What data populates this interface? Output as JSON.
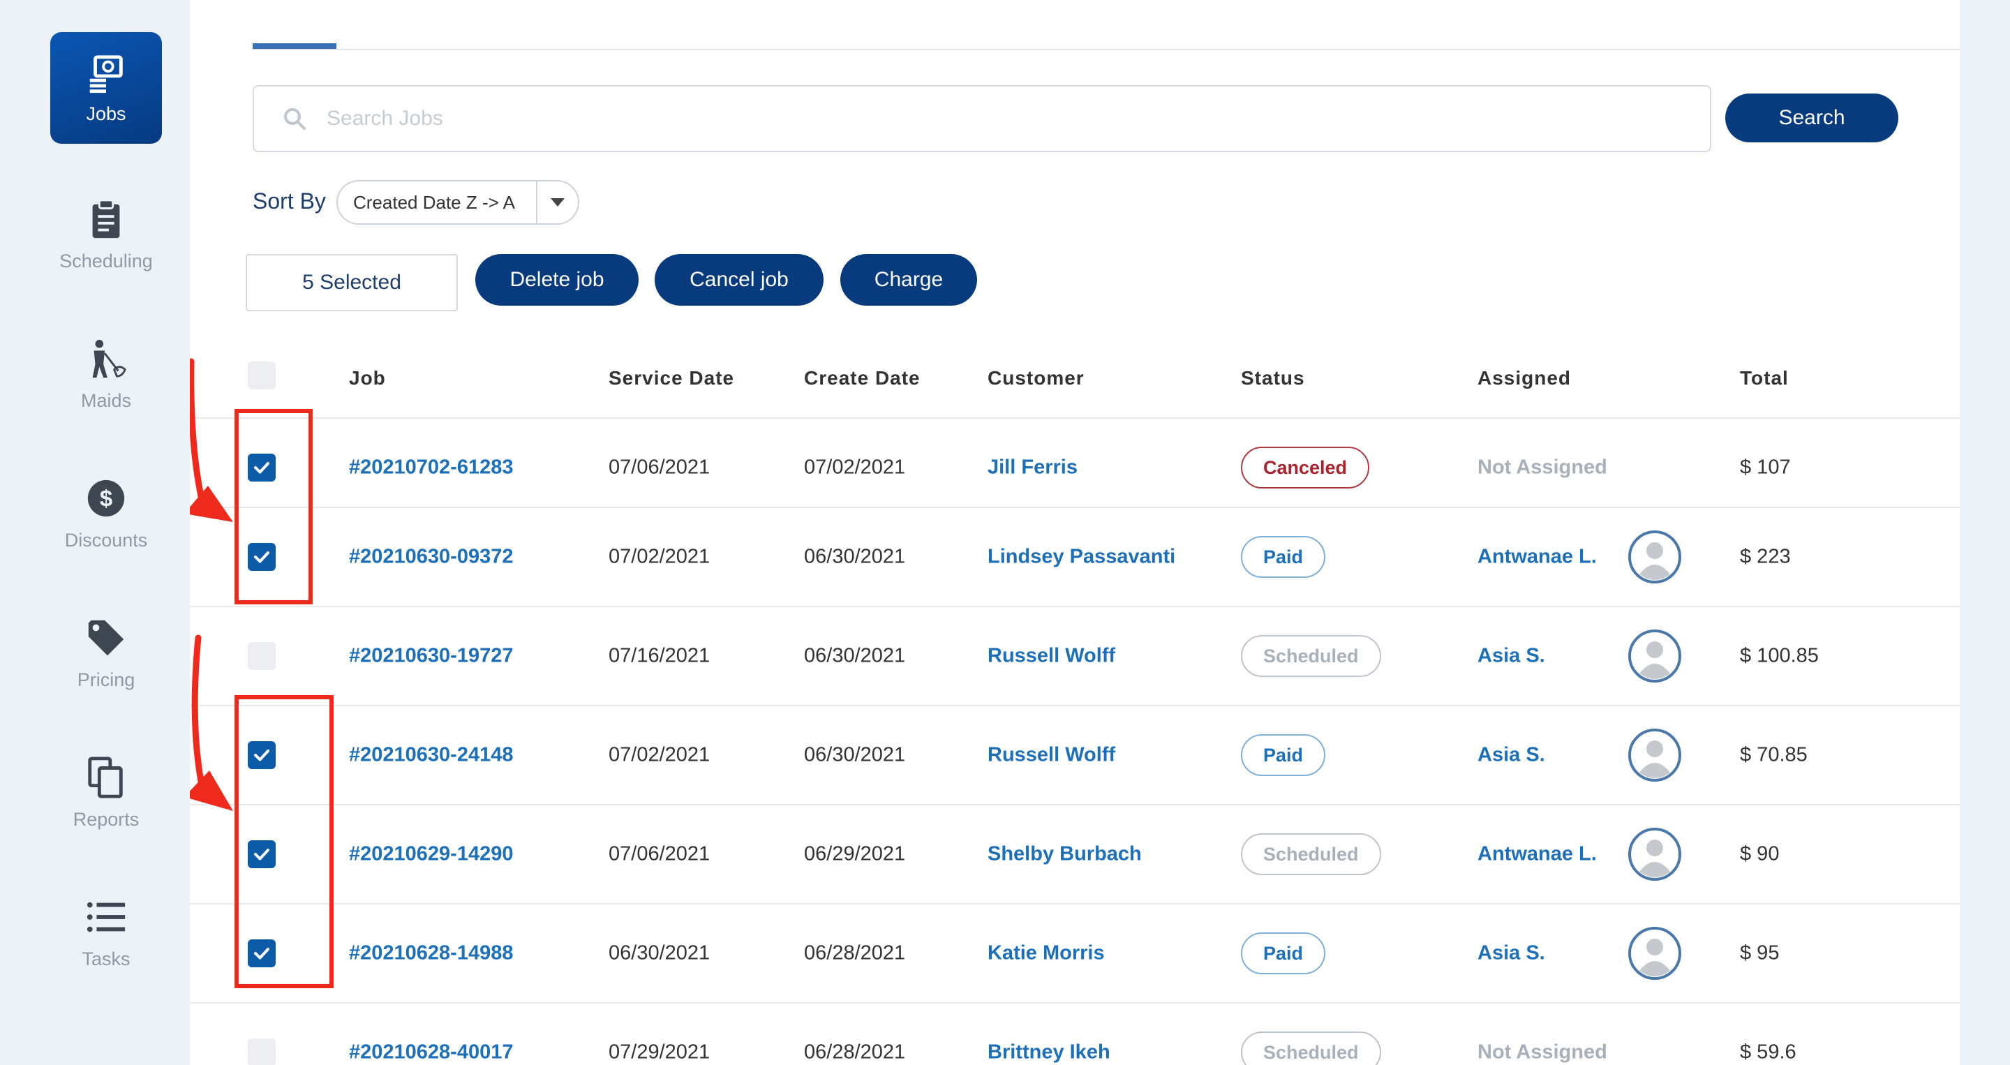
{
  "sidebar": {
    "items": [
      {
        "label": "Jobs",
        "icon": "jobs-icon",
        "active": true
      },
      {
        "label": "Scheduling",
        "icon": "clipboard-icon"
      },
      {
        "label": "Maids",
        "icon": "maid-icon"
      },
      {
        "label": "Discounts",
        "icon": "dollar-icon"
      },
      {
        "label": "Pricing",
        "icon": "tag-icon"
      },
      {
        "label": "Reports",
        "icon": "copy-icon"
      },
      {
        "label": "Tasks",
        "icon": "list-icon"
      }
    ]
  },
  "search": {
    "placeholder": "Search Jobs",
    "button_label": "Search"
  },
  "sort": {
    "label": "Sort By",
    "value": "Created Date Z -> A"
  },
  "bulk": {
    "selected_label": "5 Selected",
    "delete_label": "Delete job",
    "cancel_label": "Cancel job",
    "charge_label": "Charge"
  },
  "table": {
    "headers": {
      "job": "Job",
      "service_date": "Service Date",
      "create_date": "Create Date",
      "customer": "Customer",
      "status": "Status",
      "assigned": "Assigned",
      "total": "Total"
    },
    "rows": [
      {
        "checked": true,
        "job": "#20210702-61283",
        "service_date": "07/06/2021",
        "create_date": "07/02/2021",
        "customer": "Jill Ferris",
        "status": "Canceled",
        "status_type": "canceled",
        "assigned": "Not Assigned",
        "has_avatar": false,
        "total": "$ 107"
      },
      {
        "checked": true,
        "job": "#20210630-09372",
        "service_date": "07/02/2021",
        "create_date": "06/30/2021",
        "customer": "Lindsey Passavanti",
        "status": "Paid",
        "status_type": "paid",
        "assigned": "Antwanae L.",
        "has_avatar": true,
        "total": "$ 223"
      },
      {
        "checked": false,
        "job": "#20210630-19727",
        "service_date": "07/16/2021",
        "create_date": "06/30/2021",
        "customer": "Russell Wolff",
        "status": "Scheduled",
        "status_type": "scheduled",
        "assigned": "Asia S.",
        "has_avatar": true,
        "total": "$ 100.85"
      },
      {
        "checked": true,
        "job": "#20210630-24148",
        "service_date": "07/02/2021",
        "create_date": "06/30/2021",
        "customer": "Russell Wolff",
        "status": "Paid",
        "status_type": "paid",
        "assigned": "Asia S.",
        "has_avatar": true,
        "total": "$ 70.85"
      },
      {
        "checked": true,
        "job": "#20210629-14290",
        "service_date": "07/06/2021",
        "create_date": "06/29/2021",
        "customer": "Shelby Burbach",
        "status": "Scheduled",
        "status_type": "scheduled",
        "assigned": "Antwanae L.",
        "has_avatar": true,
        "total": "$ 90"
      },
      {
        "checked": true,
        "job": "#20210628-14988",
        "service_date": "06/30/2021",
        "create_date": "06/28/2021",
        "customer": "Katie Morris",
        "status": "Paid",
        "status_type": "paid",
        "assigned": "Asia S.",
        "has_avatar": true,
        "total": "$ 95"
      },
      {
        "checked": false,
        "job": "#20210628-40017",
        "service_date": "07/29/2021",
        "create_date": "06/28/2021",
        "customer": "Brittney Ikeh",
        "status": "Scheduled",
        "status_type": "scheduled",
        "assigned": "Not Assigned",
        "has_avatar": false,
        "total": "$ 59.6"
      }
    ]
  },
  "colors": {
    "primary": "#073b7e",
    "link": "#1d6fb8",
    "annotation": "#ee2a1c",
    "canceled": "#a8232c"
  }
}
